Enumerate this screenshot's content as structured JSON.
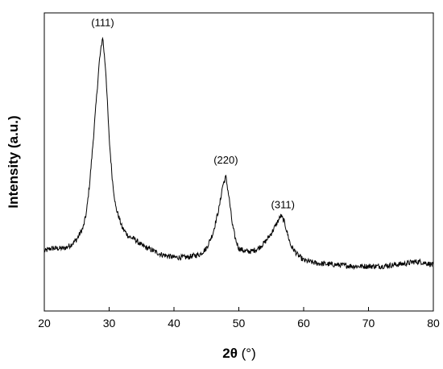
{
  "chart_data": {
    "type": "line",
    "title": "",
    "xlabel_bold": "2θ",
    "xlabel_rest": " (°)",
    "ylabel": "Intensity (a.u.)",
    "xlim": [
      20,
      80
    ],
    "ylim": [
      0,
      1
    ],
    "y_ticks_shown": false,
    "x_ticks": [
      20,
      30,
      40,
      50,
      60,
      70,
      80
    ],
    "x_tick_labels": [
      "20",
      "30",
      "40",
      "50",
      "60",
      "70",
      "80"
    ],
    "grid": false,
    "legend": "none",
    "line_color": "#000000",
    "annotations": [
      {
        "text": "(111)",
        "x": 29.0,
        "y": 0.955
      },
      {
        "text": "(220)",
        "x": 48.0,
        "y": 0.495
      },
      {
        "text": "(311)",
        "x": 56.8,
        "y": 0.345
      }
    ],
    "series": [
      {
        "x": [
          20,
          21,
          22,
          23,
          24,
          25,
          26,
          26.5,
          27,
          27.5,
          28,
          28.5,
          29,
          29.5,
          30,
          30.5,
          31,
          32,
          33,
          34,
          35,
          36,
          37,
          38,
          40,
          42,
          44,
          45,
          46,
          47,
          47.5,
          48,
          48.5,
          49,
          49.5,
          50,
          51,
          52,
          53,
          54,
          55,
          56,
          56.5,
          57,
          57.5,
          58,
          59,
          60,
          62,
          65,
          68,
          70,
          72,
          74,
          76,
          77,
          78,
          79,
          80
        ],
        "y": [
          0.2,
          0.21,
          0.21,
          0.21,
          0.22,
          0.24,
          0.28,
          0.33,
          0.43,
          0.56,
          0.7,
          0.84,
          0.92,
          0.8,
          0.58,
          0.44,
          0.35,
          0.28,
          0.25,
          0.24,
          0.22,
          0.21,
          0.2,
          0.19,
          0.18,
          0.18,
          0.19,
          0.21,
          0.26,
          0.35,
          0.42,
          0.45,
          0.38,
          0.29,
          0.24,
          0.21,
          0.2,
          0.2,
          0.21,
          0.23,
          0.26,
          0.3,
          0.32,
          0.3,
          0.26,
          0.22,
          0.19,
          0.17,
          0.16,
          0.155,
          0.15,
          0.15,
          0.15,
          0.155,
          0.16,
          0.165,
          0.165,
          0.16,
          0.155
        ]
      }
    ]
  }
}
